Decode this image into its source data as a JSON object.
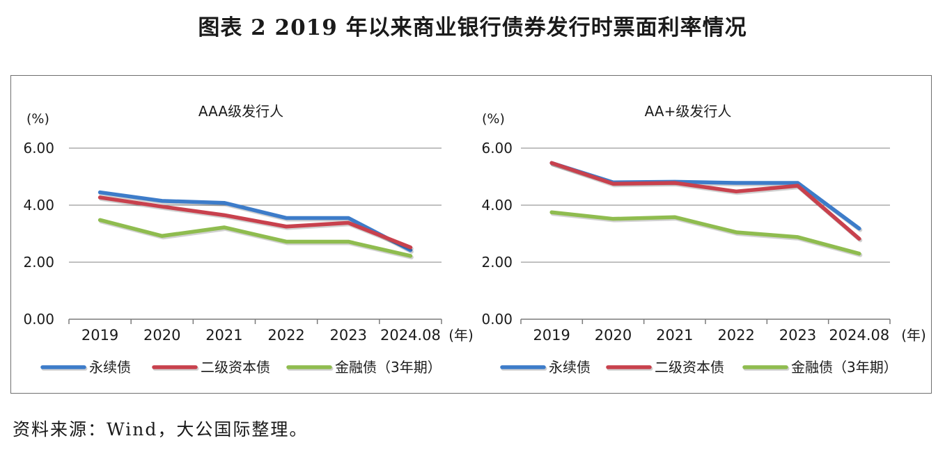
{
  "title": "图表 2  2019 年以来商业银行债券发行时票面利率情况",
  "source": "资料来源：Wind，大公国际整理。",
  "colors": {
    "永续债": "#3d7cc9",
    "二级资本债": "#c8414d",
    "金融债": "#8fbc4f"
  },
  "chart_data": [
    {
      "type": "line",
      "title": "AAA级发行人",
      "ylabel": "(%)",
      "xunit": "(年)",
      "categories": [
        "2019",
        "2020",
        "2021",
        "2022",
        "2023",
        "2024.08"
      ],
      "yticks": [
        "0.00",
        "2.00",
        "4.00",
        "6.00"
      ],
      "ylim": [
        0,
        6
      ],
      "grid": true,
      "legend_position": "bottom",
      "series": [
        {
          "name": "永续债",
          "values": [
            4.45,
            4.15,
            4.08,
            3.55,
            3.55,
            2.42
          ]
        },
        {
          "name": "二级资本债",
          "values": [
            4.27,
            3.95,
            3.65,
            3.25,
            3.38,
            2.52
          ]
        },
        {
          "name": "金融债（3年期）",
          "values": [
            3.48,
            2.92,
            3.22,
            2.72,
            2.72,
            2.22
          ]
        }
      ]
    },
    {
      "type": "line",
      "title": "AA+级发行人",
      "ylabel": "(%)",
      "xunit": "(年)",
      "categories": [
        "2019",
        "2020",
        "2021",
        "2022",
        "2023",
        "2024.08"
      ],
      "yticks": [
        "0.00",
        "2.00",
        "4.00",
        "6.00"
      ],
      "ylim": [
        0,
        6
      ],
      "grid": true,
      "legend_position": "bottom",
      "series": [
        {
          "name": "永续债",
          "values": [
            5.48,
            4.8,
            4.82,
            4.78,
            4.78,
            3.18
          ]
        },
        {
          "name": "二级资本债",
          "values": [
            5.48,
            4.75,
            4.78,
            4.48,
            4.68,
            2.82
          ]
        },
        {
          "name": "金融债（3年期）",
          "values": [
            3.75,
            3.52,
            3.58,
            3.05,
            2.88,
            2.3
          ]
        }
      ]
    }
  ]
}
